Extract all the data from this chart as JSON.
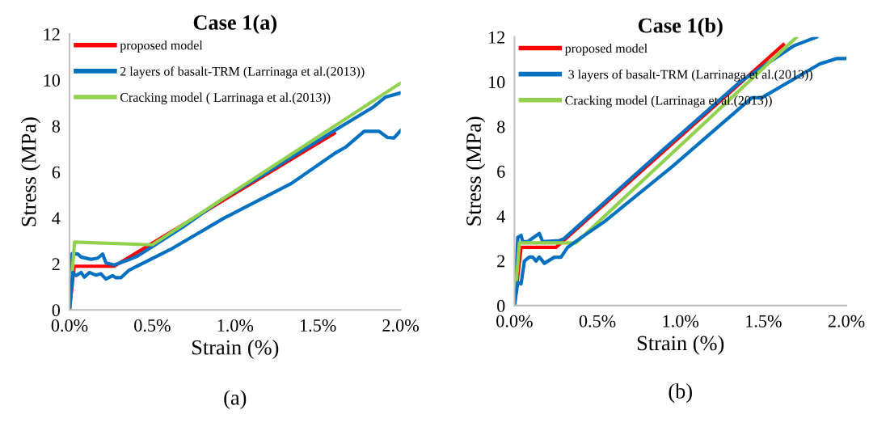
{
  "chart_data": [
    {
      "type": "line",
      "title": "Case 1(a)",
      "xlabel": "Strain (%)",
      "ylabel": "Stress (MPa)",
      "xlim": [
        0,
        2.0
      ],
      "xticks": [
        {
          "value": 0,
          "label": "0.0%"
        },
        {
          "value": 0.5,
          "label": "0.5%"
        },
        {
          "value": 1.0,
          "label": "1.0%"
        },
        {
          "value": 1.5,
          "label": "1.5%"
        },
        {
          "value": 2.0,
          "label": "2.0%"
        }
      ],
      "ylim": [
        0,
        12
      ],
      "yticks": [
        0,
        2,
        4,
        6,
        8,
        10,
        12
      ],
      "grid": false,
      "legend": "top left",
      "marker": "none",
      "line_style": "solid",
      "annotations": [
        "(a)"
      ],
      "series": [
        {
          "name": "proposed model",
          "color": "#ff0000",
          "x": [
            0,
            0.028,
            0.27,
            1.6
          ],
          "values": [
            0,
            1.9,
            1.9,
            7.68
          ]
        },
        {
          "name": "2 layers of basalt-TRM (Larrinaga et al.(2013))",
          "color": "#0070c0",
          "x": [
            0,
            0.016,
            0.05,
            0.07,
            0.13,
            0.17,
            0.2,
            0.22,
            0.27,
            0.35,
            0.41,
            0.5,
            0.69,
            0.92,
            1.18,
            1.6,
            1.83,
            1.91,
            2.0
          ],
          "values": [
            0,
            2.45,
            2.43,
            2.3,
            2.2,
            2.25,
            2.43,
            2.05,
            1.95,
            2.16,
            2.34,
            2.75,
            3.63,
            4.8,
            5.92,
            7.8,
            8.8,
            9.26,
            9.44
          ]
        },
        {
          "name": "Cracking model ( Larrinaga et al.(2013))",
          "color": "#92d050",
          "x": [
            0,
            0.03,
            0.5,
            2.0
          ],
          "values": [
            0,
            2.95,
            2.83,
            9.87
          ]
        },
        {
          "color": "#0070c0",
          "x": [
            0,
            0.02,
            0.04,
            0.07,
            0.09,
            0.12,
            0.16,
            0.19,
            0.22,
            0.26,
            0.28,
            0.31,
            0.36,
            0.61,
            0.93,
            1.34,
            1.6,
            1.67,
            1.78,
            1.87,
            1.92,
            1.96,
            2.0
          ],
          "values": [
            0,
            1.63,
            1.49,
            1.63,
            1.42,
            1.63,
            1.51,
            1.57,
            1.34,
            1.49,
            1.4,
            1.4,
            1.73,
            2.63,
            3.98,
            5.5,
            6.8,
            7.09,
            7.77,
            7.77,
            7.5,
            7.48,
            7.8
          ]
        }
      ]
    },
    {
      "type": "line",
      "title": "Case 1(b)",
      "xlabel": "Strain (%)",
      "ylabel": "Stress (MPa)",
      "xlim": [
        0,
        2.0
      ],
      "xticks": [
        {
          "value": 0,
          "label": "0.0%"
        },
        {
          "value": 0.5,
          "label": "0.5%"
        },
        {
          "value": 1.0,
          "label": "1.0%"
        },
        {
          "value": 1.5,
          "label": "1.5%"
        },
        {
          "value": 2.0,
          "label": "2.0%"
        }
      ],
      "ylim": [
        0,
        12
      ],
      "yticks": [
        0,
        2,
        4,
        6,
        8,
        10,
        12
      ],
      "grid": false,
      "legend": "top left",
      "marker": "none",
      "line_style": "solid",
      "annotations": [
        "(b)"
      ],
      "series": [
        {
          "name": "proposed model",
          "color": "#ff0000",
          "x": [
            0,
            0.04,
            0.25,
            1.62
          ],
          "values": [
            0,
            2.6,
            2.6,
            11.66
          ]
        },
        {
          "name": " 3 layers of basalt-TRM (Larrinaga et al.(2013))",
          "color": "#0070c0",
          "x": [
            0,
            0.02,
            0.04,
            0.05,
            0.08,
            0.15,
            0.17,
            0.27,
            0.3,
            0.87,
            1.36,
            1.68,
            1.82
          ],
          "values": [
            0,
            3.05,
            3.14,
            2.86,
            2.86,
            3.22,
            2.86,
            2.9,
            3.0,
            6.8,
            10.0,
            11.6,
            12.0
          ]
        },
        {
          "name": "Cracking model (Larrinaga et al.(2013))",
          "color": "#92d050",
          "x": [
            0,
            0.03,
            0.37,
            1.7
          ],
          "values": [
            0,
            2.8,
            2.8,
            12.0
          ]
        },
        {
          "color": "#0070c0",
          "x": [
            0,
            0.02,
            0.04,
            0.06,
            0.09,
            0.11,
            0.13,
            0.15,
            0.18,
            0.24,
            0.28,
            0.32,
            0.41,
            0.54,
            0.95,
            1.43,
            1.49,
            1.65,
            1.84,
            1.94,
            2.0
          ],
          "values": [
            0,
            1.03,
            0.97,
            1.99,
            2.17,
            2.17,
            1.99,
            2.17,
            1.89,
            2.16,
            2.16,
            2.6,
            3.08,
            3.74,
            6.21,
            9.29,
            9.29,
            9.98,
            10.8,
            11.04,
            11.04
          ]
        }
      ]
    }
  ]
}
